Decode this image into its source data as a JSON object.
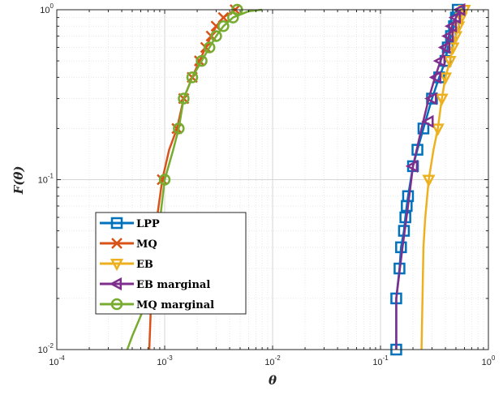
{
  "chart_data": {
    "type": "line",
    "title": "",
    "xlabel": "θ",
    "ylabel": "F(θ)",
    "x_scale": "log",
    "y_scale": "log",
    "xlim": [
      0.0001,
      1
    ],
    "ylim": [
      0.01,
      1
    ],
    "grid": true,
    "minor_grid": true,
    "legend_position": "lower-left",
    "x_ticks": [
      {
        "base": "10",
        "exp": "-4",
        "value": 0.0001
      },
      {
        "base": "10",
        "exp": "-3",
        "value": 0.001
      },
      {
        "base": "10",
        "exp": "-2",
        "value": 0.01
      },
      {
        "base": "10",
        "exp": "-1",
        "value": 0.1
      },
      {
        "base": "10",
        "exp": "0",
        "value": 1
      }
    ],
    "y_ticks": [
      {
        "base": "10",
        "exp": "-2",
        "value": 0.01
      },
      {
        "base": "10",
        "exp": "-1",
        "value": 0.1
      },
      {
        "base": "10",
        "exp": "0",
        "value": 1
      }
    ],
    "series": [
      {
        "name": "LPP",
        "color": "#0072BD",
        "marker": "square",
        "line": [
          [
            0.14,
            0.01
          ],
          [
            0.14,
            0.02
          ],
          [
            0.15,
            0.03
          ],
          [
            0.155,
            0.04
          ],
          [
            0.165,
            0.05
          ],
          [
            0.17,
            0.06
          ],
          [
            0.175,
            0.07
          ],
          [
            0.18,
            0.08
          ],
          [
            0.2,
            0.12
          ],
          [
            0.22,
            0.15
          ],
          [
            0.25,
            0.2
          ],
          [
            0.3,
            0.3
          ],
          [
            0.35,
            0.4
          ],
          [
            0.4,
            0.5
          ],
          [
            0.42,
            0.6
          ],
          [
            0.45,
            0.7
          ],
          [
            0.48,
            0.8
          ],
          [
            0.5,
            0.9
          ],
          [
            0.52,
            1.0
          ]
        ],
        "markers": [
          [
            0.14,
            0.01
          ],
          [
            0.14,
            0.02
          ],
          [
            0.15,
            0.03
          ],
          [
            0.155,
            0.04
          ],
          [
            0.165,
            0.05
          ],
          [
            0.17,
            0.06
          ],
          [
            0.175,
            0.07
          ],
          [
            0.18,
            0.08
          ],
          [
            0.2,
            0.12
          ],
          [
            0.22,
            0.15
          ],
          [
            0.25,
            0.2
          ],
          [
            0.3,
            0.3
          ],
          [
            0.35,
            0.4
          ],
          [
            0.4,
            0.5
          ],
          [
            0.42,
            0.6
          ],
          [
            0.45,
            0.7
          ],
          [
            0.48,
            0.8
          ],
          [
            0.5,
            0.9
          ],
          [
            0.52,
            1.0
          ]
        ]
      },
      {
        "name": "MQ",
        "color": "#D95319",
        "marker": "x",
        "line": [
          [
            0.00072,
            0.01
          ],
          [
            0.00075,
            0.02
          ],
          [
            0.0008,
            0.04
          ],
          [
            0.00085,
            0.06
          ],
          [
            0.00095,
            0.1
          ],
          [
            0.0011,
            0.15
          ],
          [
            0.0013,
            0.2
          ],
          [
            0.0015,
            0.3
          ],
          [
            0.0018,
            0.4
          ],
          [
            0.0021,
            0.5
          ],
          [
            0.0024,
            0.6
          ],
          [
            0.0027,
            0.7
          ],
          [
            0.003,
            0.8
          ],
          [
            0.0035,
            0.9
          ],
          [
            0.0045,
            1.0
          ]
        ],
        "markers": [
          [
            0.00095,
            0.1
          ],
          [
            0.0013,
            0.2
          ],
          [
            0.0015,
            0.3
          ],
          [
            0.0018,
            0.4
          ],
          [
            0.0021,
            0.5
          ],
          [
            0.0024,
            0.6
          ],
          [
            0.0027,
            0.7
          ],
          [
            0.003,
            0.8
          ],
          [
            0.0035,
            0.9
          ],
          [
            0.0045,
            1.0
          ]
        ]
      },
      {
        "name": "EB",
        "color": "#EDB120",
        "marker": "triangle-down",
        "line": [
          [
            0.24,
            0.01
          ],
          [
            0.245,
            0.02
          ],
          [
            0.25,
            0.04
          ],
          [
            0.26,
            0.06
          ],
          [
            0.28,
            0.1
          ],
          [
            0.31,
            0.15
          ],
          [
            0.34,
            0.2
          ],
          [
            0.37,
            0.3
          ],
          [
            0.4,
            0.4
          ],
          [
            0.44,
            0.5
          ],
          [
            0.47,
            0.6
          ],
          [
            0.5,
            0.7
          ],
          [
            0.53,
            0.8
          ],
          [
            0.56,
            0.9
          ],
          [
            0.6,
            1.0
          ]
        ],
        "markers": [
          [
            0.28,
            0.1
          ],
          [
            0.34,
            0.2
          ],
          [
            0.37,
            0.3
          ],
          [
            0.4,
            0.4
          ],
          [
            0.44,
            0.5
          ],
          [
            0.47,
            0.6
          ],
          [
            0.5,
            0.7
          ],
          [
            0.53,
            0.8
          ],
          [
            0.56,
            0.9
          ],
          [
            0.6,
            1.0
          ]
        ]
      },
      {
        "name": "EB  marginal",
        "color": "#7E2F8E",
        "marker": "triangle-left",
        "line": [
          [
            0.14,
            0.01
          ],
          [
            0.14,
            0.02
          ],
          [
            0.16,
            0.04
          ],
          [
            0.18,
            0.07
          ],
          [
            0.2,
            0.12
          ],
          [
            0.24,
            0.2
          ],
          [
            0.28,
            0.3
          ],
          [
            0.32,
            0.4
          ],
          [
            0.36,
            0.5
          ],
          [
            0.4,
            0.6
          ],
          [
            0.43,
            0.7
          ],
          [
            0.46,
            0.8
          ],
          [
            0.5,
            0.9
          ],
          [
            0.55,
            1.0
          ]
        ],
        "markers": [
          [
            0.2,
            0.12
          ],
          [
            0.28,
            0.22
          ],
          [
            0.3,
            0.3
          ],
          [
            0.33,
            0.4
          ],
          [
            0.36,
            0.5
          ],
          [
            0.4,
            0.6
          ],
          [
            0.43,
            0.7
          ],
          [
            0.46,
            0.8
          ],
          [
            0.5,
            0.9
          ],
          [
            0.55,
            1.0
          ]
        ]
      },
      {
        "name": "MQ marginal",
        "color": "#77AC30",
        "marker": "circle",
        "line": [
          [
            0.00045,
            0.01
          ],
          [
            0.0005,
            0.012
          ],
          [
            0.00058,
            0.015
          ],
          [
            0.0007,
            0.02
          ],
          [
            0.0008,
            0.03
          ],
          [
            0.00088,
            0.05
          ],
          [
            0.001,
            0.1
          ],
          [
            0.0012,
            0.15
          ],
          [
            0.00135,
            0.2
          ],
          [
            0.0015,
            0.3
          ],
          [
            0.0018,
            0.4
          ],
          [
            0.0022,
            0.5
          ],
          [
            0.0026,
            0.6
          ],
          [
            0.003,
            0.7
          ],
          [
            0.0035,
            0.8
          ],
          [
            0.0043,
            0.9
          ],
          [
            0.006,
            0.98
          ],
          [
            0.008,
            1.0
          ]
        ],
        "markers": [
          [
            0.001,
            0.1
          ],
          [
            0.00135,
            0.2
          ],
          [
            0.0015,
            0.3
          ],
          [
            0.0018,
            0.4
          ],
          [
            0.0022,
            0.5
          ],
          [
            0.0026,
            0.6
          ],
          [
            0.003,
            0.7
          ],
          [
            0.0035,
            0.8
          ],
          [
            0.0043,
            0.9
          ],
          [
            0.0047,
            1.0
          ]
        ]
      }
    ]
  }
}
